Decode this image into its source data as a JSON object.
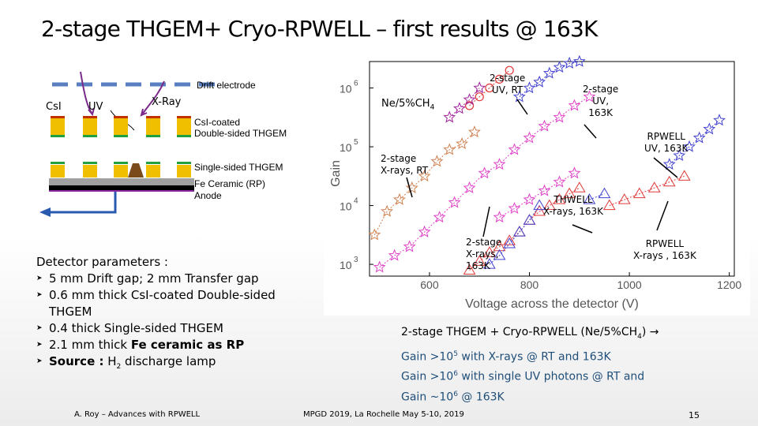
{
  "title": "2-stage THGEM+ Cryo-RPWELL  – first results @ 163K",
  "diagram": {
    "drift_electrode": "Drift electrode",
    "csi": "CsI",
    "uv": "UV",
    "xray": "X-Ray",
    "double_thgem": [
      "CsI-coated",
      "Double-sided THGEM"
    ],
    "single_thgem": "Single-sided THGEM",
    "fe_ceramic": "Fe Ceramic (RP)",
    "anode": "Anode"
  },
  "params": {
    "heading": "Detector parameters :",
    "items": [
      {
        "text": "5 mm Drift gap; 2 mm Transfer gap"
      },
      {
        "text": "0.6 mm thick CsI-coated Double-sided THGEM"
      },
      {
        "text": "0.4 thick Single-sided THGEM"
      },
      {
        "pre": "2.1 mm thick ",
        "bold": "Fe ceramic as RP"
      },
      {
        "bold": "Source :",
        "mid": " H",
        "sub": "2",
        "post": " discharge lamp"
      }
    ]
  },
  "chart_data": {
    "type": "scatter",
    "xlabel": "Voltage across the detector (V)",
    "ylabel": "Gain",
    "x_ticks": [
      "600",
      "800",
      "1000",
      "1200"
    ],
    "y_ticks": [
      {
        "base": "10",
        "exp": "3"
      },
      {
        "base": "10",
        "exp": "4"
      },
      {
        "base": "10",
        "exp": "5"
      },
      {
        "base": "10",
        "exp": "6"
      }
    ],
    "xlim": [
      480,
      1210
    ],
    "ylim_log10": [
      2.8,
      6.45
    ],
    "colors": {
      "magenta": "#e040c8",
      "red": "#e03838",
      "blue": "#4040d0",
      "orange": "#d08050",
      "purple": "#a0209a"
    },
    "series": [
      {
        "color": "orange",
        "marker": "star",
        "x": [
          490,
          515,
          540,
          565,
          590,
          615,
          640,
          665,
          690
        ],
        "y": [
          3.5,
          3.9,
          4.1,
          4.3,
          4.5,
          4.75,
          4.95,
          5.05,
          5.25
        ]
      },
      {
        "color": "magenta",
        "marker": "star",
        "x": [
          500,
          530,
          560,
          590,
          620,
          650,
          680,
          710,
          740,
          770,
          800,
          830,
          860,
          890,
          920
        ],
        "y": [
          2.95,
          3.15,
          3.3,
          3.55,
          3.8,
          4.05,
          4.3,
          4.55,
          4.7,
          4.95,
          5.15,
          5.35,
          5.5,
          5.7,
          5.85
        ]
      },
      {
        "color": "red",
        "marker": "circle",
        "x": [
          680,
          700,
          720,
          740,
          760
        ],
        "y": [
          5.7,
          5.85,
          6.0,
          6.15,
          6.3
        ]
      },
      {
        "color": "purple",
        "marker": "star",
        "x": [
          640,
          660,
          680,
          700
        ],
        "y": [
          5.5,
          5.65,
          5.8,
          6.0
        ]
      },
      {
        "color": "blue",
        "marker": "star",
        "x": [
          780,
          800,
          820,
          840,
          860,
          880,
          900
        ],
        "y": [
          5.85,
          6.0,
          6.1,
          6.25,
          6.35,
          6.42,
          6.45
        ]
      },
      {
        "color": "blue",
        "marker": "star",
        "x": [
          1080,
          1100,
          1120,
          1140,
          1160,
          1180
        ],
        "y": [
          4.7,
          4.85,
          5.0,
          5.15,
          5.3,
          5.45
        ]
      },
      {
        "color": "red",
        "marker": "triangle",
        "x": [
          680,
          700,
          720,
          740,
          760,
          780,
          800,
          820,
          840,
          860,
          880,
          900
        ],
        "y": [
          2.9,
          3.05,
          3.2,
          3.3,
          3.4,
          3.55,
          3.75,
          3.9,
          4.0,
          4.1,
          4.2,
          4.3
        ]
      },
      {
        "color": "blue",
        "marker": "triangle",
        "x": [
          720,
          740,
          760,
          780,
          800,
          820
        ],
        "y": [
          3.0,
          3.15,
          3.35,
          3.55,
          3.75,
          4.0
        ]
      },
      {
        "color": "red",
        "marker": "triangle",
        "x": [
          960,
          990,
          1020,
          1050,
          1080,
          1110
        ],
        "y": [
          4.0,
          4.1,
          4.2,
          4.3,
          4.4,
          4.5
        ]
      },
      {
        "color": "blue",
        "marker": "triangle",
        "x": [
          920,
          950
        ],
        "y": [
          4.1,
          4.2
        ]
      },
      {
        "color": "magenta",
        "marker": "star",
        "x": [
          740,
          770,
          800,
          830,
          860,
          890
        ],
        "y": [
          3.8,
          3.95,
          4.1,
          4.25,
          4.4,
          4.55
        ]
      }
    ],
    "annotations": {
      "gas": "Ne/5%CH",
      "gas_sub": "4",
      "uv_rt": [
        "2-stage",
        "UV, RT"
      ],
      "uv_163": [
        "2-stage",
        "UV,",
        "163K"
      ],
      "rpwell_uv": [
        "RPWELL",
        "UV, 163K"
      ],
      "xray_rt": [
        "2-stage",
        "X-rays, RT"
      ],
      "thwell": [
        "THWELL",
        "X-rays, 163K"
      ],
      "xray_163": [
        "2-stage",
        "X-rays,",
        "163K"
      ],
      "rpwell_x": [
        "RPWELL",
        "X-rays , 163K"
      ]
    }
  },
  "summary": {
    "line1_pre": "2-stage THGEM + Cryo-RPWELL (Ne/5%CH",
    "line1_sub": "4",
    "line1_post": ") →",
    "line2_pre": "Gain >10",
    "line2_sup": "5",
    "line2_post": " with X-rays @ RT and 163K",
    "line3_pre": "Gain >10",
    "line3_sup": "6",
    "line3_post": " with single UV photons @ RT and",
    "line4_pre": "Gain ~10",
    "line4_sup": "6",
    "line4_post": "  @ 163K"
  },
  "footer": {
    "left": "A. Roy – Advances with RPWELL",
    "center": "MPGD 2019, La Rochelle May 5-10, 2019",
    "page": "15"
  }
}
